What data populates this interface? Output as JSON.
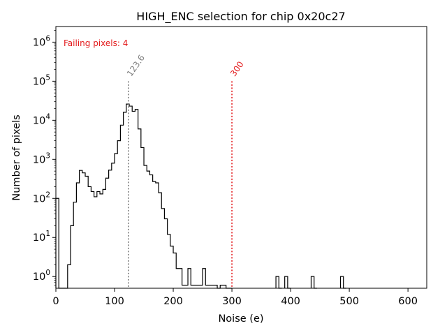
{
  "chart_data": {
    "type": "histogram",
    "title": "HIGH_ENC selection for chip 0x20c27",
    "xlabel": "Noise (e)",
    "ylabel": "Number of pixels",
    "xlim": [
      0,
      632
    ],
    "ylim_log10": [
      -0.3,
      6.4
    ],
    "yscale": "log",
    "grid": false,
    "x_ticks": [
      0,
      100,
      200,
      300,
      400,
      500,
      600
    ],
    "x_tick_labels": [
      "0",
      "100",
      "200",
      "300",
      "400",
      "500",
      "600"
    ],
    "y_ticks": [
      0,
      1,
      2,
      3,
      4,
      5,
      6
    ],
    "y_tick_labels": [
      "10^0",
      "10^1",
      "10^2",
      "10^3",
      "10^4",
      "10^5",
      "10^6"
    ],
    "bin_width": 5,
    "histogram_bins": [
      [
        0,
        100
      ],
      [
        5,
        0
      ],
      [
        10,
        0
      ],
      [
        15,
        0.5
      ],
      [
        20,
        2
      ],
      [
        25,
        20
      ],
      [
        30,
        80
      ],
      [
        35,
        250
      ],
      [
        40,
        520
      ],
      [
        45,
        450
      ],
      [
        50,
        370
      ],
      [
        55,
        200
      ],
      [
        60,
        150
      ],
      [
        65,
        110
      ],
      [
        70,
        150
      ],
      [
        75,
        130
      ],
      [
        80,
        170
      ],
      [
        85,
        330
      ],
      [
        90,
        530
      ],
      [
        95,
        800
      ],
      [
        100,
        1400
      ],
      [
        105,
        3000
      ],
      [
        110,
        7500
      ],
      [
        115,
        16000
      ],
      [
        120,
        26000
      ],
      [
        125,
        23000
      ],
      [
        130,
        17000
      ],
      [
        135,
        19000
      ],
      [
        140,
        6000
      ],
      [
        145,
        2000
      ],
      [
        150,
        700
      ],
      [
        155,
        500
      ],
      [
        160,
        400
      ],
      [
        165,
        270
      ],
      [
        170,
        250
      ],
      [
        175,
        140
      ],
      [
        180,
        55
      ],
      [
        185,
        30
      ],
      [
        190,
        12
      ],
      [
        195,
        6
      ],
      [
        200,
        4
      ],
      [
        205,
        1.6
      ],
      [
        210,
        1.6
      ],
      [
        215,
        0.6
      ],
      [
        220,
        0.6
      ],
      [
        225,
        1.6
      ],
      [
        230,
        0.6
      ],
      [
        235,
        0.6
      ],
      [
        240,
        0.6
      ],
      [
        245,
        0.6
      ],
      [
        250,
        1.6
      ],
      [
        255,
        0.6
      ],
      [
        260,
        0.6
      ],
      [
        265,
        0.6
      ],
      [
        270,
        0.6
      ],
      [
        275,
        0.35
      ],
      [
        280,
        0.6
      ],
      [
        285,
        0.6
      ],
      [
        290,
        0.35
      ],
      [
        295,
        0
      ],
      [
        375,
        1
      ],
      [
        380,
        0.5
      ],
      [
        390,
        1
      ],
      [
        395,
        0.5
      ],
      [
        435,
        1
      ],
      [
        440,
        0.5
      ],
      [
        485,
        1
      ],
      [
        490,
        0.5
      ]
    ],
    "vertical_lines": [
      {
        "x": 123.6,
        "label": "123.6",
        "color": "#808080",
        "style": "dotted"
      },
      {
        "x": 300,
        "label": "300",
        "color": "#e31a1c",
        "style": "dotted"
      }
    ],
    "annotation": {
      "text": "Failing pixels: 4",
      "color": "#e31a1c",
      "position": "top-left"
    },
    "line_color": "#000000"
  }
}
